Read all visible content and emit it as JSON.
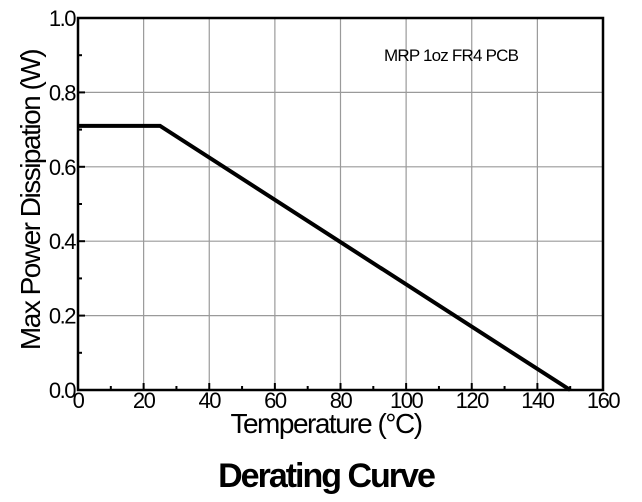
{
  "chart_data": {
    "type": "line",
    "title": "Derating Curve",
    "xlabel": "Temperature (°C)",
    "ylabel": "Max Power Dissipation (W)",
    "annotation": "MRP 1oz FR4 PCB",
    "xlim": [
      0,
      160
    ],
    "ylim": [
      0,
      1.0
    ],
    "x_ticks": [
      0,
      20,
      40,
      60,
      80,
      100,
      120,
      140,
      160
    ],
    "y_ticks": [
      0.0,
      0.2,
      0.4,
      0.6,
      0.8,
      1.0
    ],
    "x_tick_labels": [
      "0",
      "20",
      "40",
      "60",
      "80",
      "100",
      "120",
      "140",
      "160"
    ],
    "y_tick_labels": [
      "0.0",
      "0.2",
      "0.4",
      "0.6",
      "0.8",
      "1.0"
    ],
    "grid": true,
    "series": [
      {
        "x": [
          0,
          25,
          150
        ],
        "y": [
          0.71,
          0.71,
          0.0
        ]
      }
    ]
  }
}
